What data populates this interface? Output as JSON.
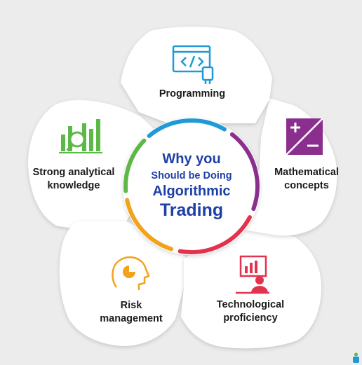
{
  "center": {
    "line1": "Why you",
    "line2": "Should be Doing",
    "line3": "Algorithmic",
    "line4": "Trading"
  },
  "petals": [
    {
      "id": "programming",
      "line1": "Programming",
      "line2": "",
      "icon": "code-usb-icon",
      "color": "#1f9ad6"
    },
    {
      "id": "mathematical",
      "line1": "Mathematical",
      "line2": "concepts",
      "icon": "plus-minus-icon",
      "color": "#8b2f8f"
    },
    {
      "id": "technological",
      "line1": "Technological",
      "line2": "proficiency",
      "icon": "presenter-chart-icon",
      "color": "#e2334e"
    },
    {
      "id": "risk",
      "line1": "Risk",
      "line2": "management",
      "icon": "head-pie-chart-icon",
      "color": "#f2a31b"
    },
    {
      "id": "analytical",
      "line1": "Strong analytical",
      "line2": "knowledge",
      "icon": "bar-chart-magnifier-icon",
      "color": "#5cb947"
    }
  ],
  "ring_colors": {
    "top": "#1f9ad6",
    "right": "#8b2f8f",
    "bottom_right": "#e2334e",
    "bottom_left": "#f2a31b",
    "left": "#5cb947"
  },
  "corner_logo": "brand-logo-icon"
}
